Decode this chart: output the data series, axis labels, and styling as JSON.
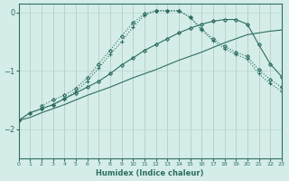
{
  "xlabel": "Humidex (Indice chaleur)",
  "background_color": "#d4ede8",
  "line_color": "#2e6e62",
  "grid_color": "#b8d8d0",
  "xlim": [
    0,
    23
  ],
  "ylim": [
    -2.5,
    0.15
  ],
  "yticks": [
    0,
    -1,
    -2
  ],
  "xticks": [
    0,
    1,
    2,
    3,
    4,
    5,
    6,
    7,
    8,
    9,
    10,
    11,
    12,
    13,
    14,
    15,
    16,
    17,
    18,
    19,
    20,
    21,
    22,
    23
  ],
  "series": [
    {
      "x": [
        0,
        1,
        2,
        3,
        4,
        5,
        6,
        7,
        8,
        9,
        10,
        11,
        12,
        13,
        14,
        15,
        16,
        17,
        18,
        19,
        20,
        21,
        22,
        23
      ],
      "y": [
        -1.85,
        -1.72,
        -1.65,
        -1.58,
        -1.48,
        -1.35,
        -1.18,
        -0.95,
        -0.72,
        -0.5,
        -0.25,
        -0.05,
        0.03,
        0.03,
        0.03,
        -0.08,
        -0.3,
        -0.48,
        -0.62,
        -0.72,
        -0.8,
        -1.05,
        -1.22,
        -1.35
      ],
      "linestyle": "dotted",
      "marker": "+",
      "markersize": 3.5,
      "linewidth": 0.8
    },
    {
      "x": [
        2,
        3,
        4,
        5,
        6,
        7,
        8,
        9,
        10,
        11,
        12,
        13,
        14,
        15,
        16,
        17,
        18,
        19,
        20,
        21,
        22,
        23
      ],
      "y": [
        -1.6,
        -1.5,
        -1.42,
        -1.3,
        -1.12,
        -0.88,
        -0.65,
        -0.4,
        -0.18,
        -0.02,
        0.03,
        0.03,
        0.03,
        -0.08,
        -0.28,
        -0.45,
        -0.58,
        -0.68,
        -0.75,
        -0.98,
        -1.15,
        -1.28
      ],
      "linestyle": "dotted",
      "marker": "D",
      "markersize": 2.0,
      "linewidth": 0.8
    },
    {
      "x": [
        0,
        1,
        2,
        3,
        4,
        5,
        6,
        7,
        8,
        9,
        10,
        11,
        12,
        13,
        14,
        15,
        16,
        17,
        18,
        19,
        20,
        21,
        22,
        23
      ],
      "y": [
        -1.85,
        -1.72,
        -1.65,
        -1.58,
        -1.48,
        -1.38,
        -1.28,
        -1.18,
        -1.05,
        -0.9,
        -0.78,
        -0.65,
        -0.55,
        -0.45,
        -0.35,
        -0.27,
        -0.2,
        -0.15,
        -0.12,
        -0.12,
        -0.2,
        -0.55,
        -0.88,
        -1.1
      ],
      "linestyle": "solid",
      "marker": "D",
      "markersize": 2.0,
      "linewidth": 0.8
    },
    {
      "x": [
        0,
        1,
        2,
        3,
        4,
        5,
        6,
        7,
        8,
        9,
        10,
        11,
        12,
        13,
        14,
        15,
        16,
        17,
        18,
        19,
        20,
        21,
        22,
        23
      ],
      "y": [
        -1.85,
        -1.8,
        -1.72,
        -1.65,
        -1.58,
        -1.5,
        -1.42,
        -1.35,
        -1.28,
        -1.2,
        -1.12,
        -1.05,
        -0.98,
        -0.9,
        -0.82,
        -0.75,
        -0.68,
        -0.6,
        -0.52,
        -0.45,
        -0.38,
        -0.35,
        -0.32,
        -0.3
      ],
      "linestyle": "solid",
      "marker": null,
      "markersize": 0,
      "linewidth": 0.8
    }
  ]
}
